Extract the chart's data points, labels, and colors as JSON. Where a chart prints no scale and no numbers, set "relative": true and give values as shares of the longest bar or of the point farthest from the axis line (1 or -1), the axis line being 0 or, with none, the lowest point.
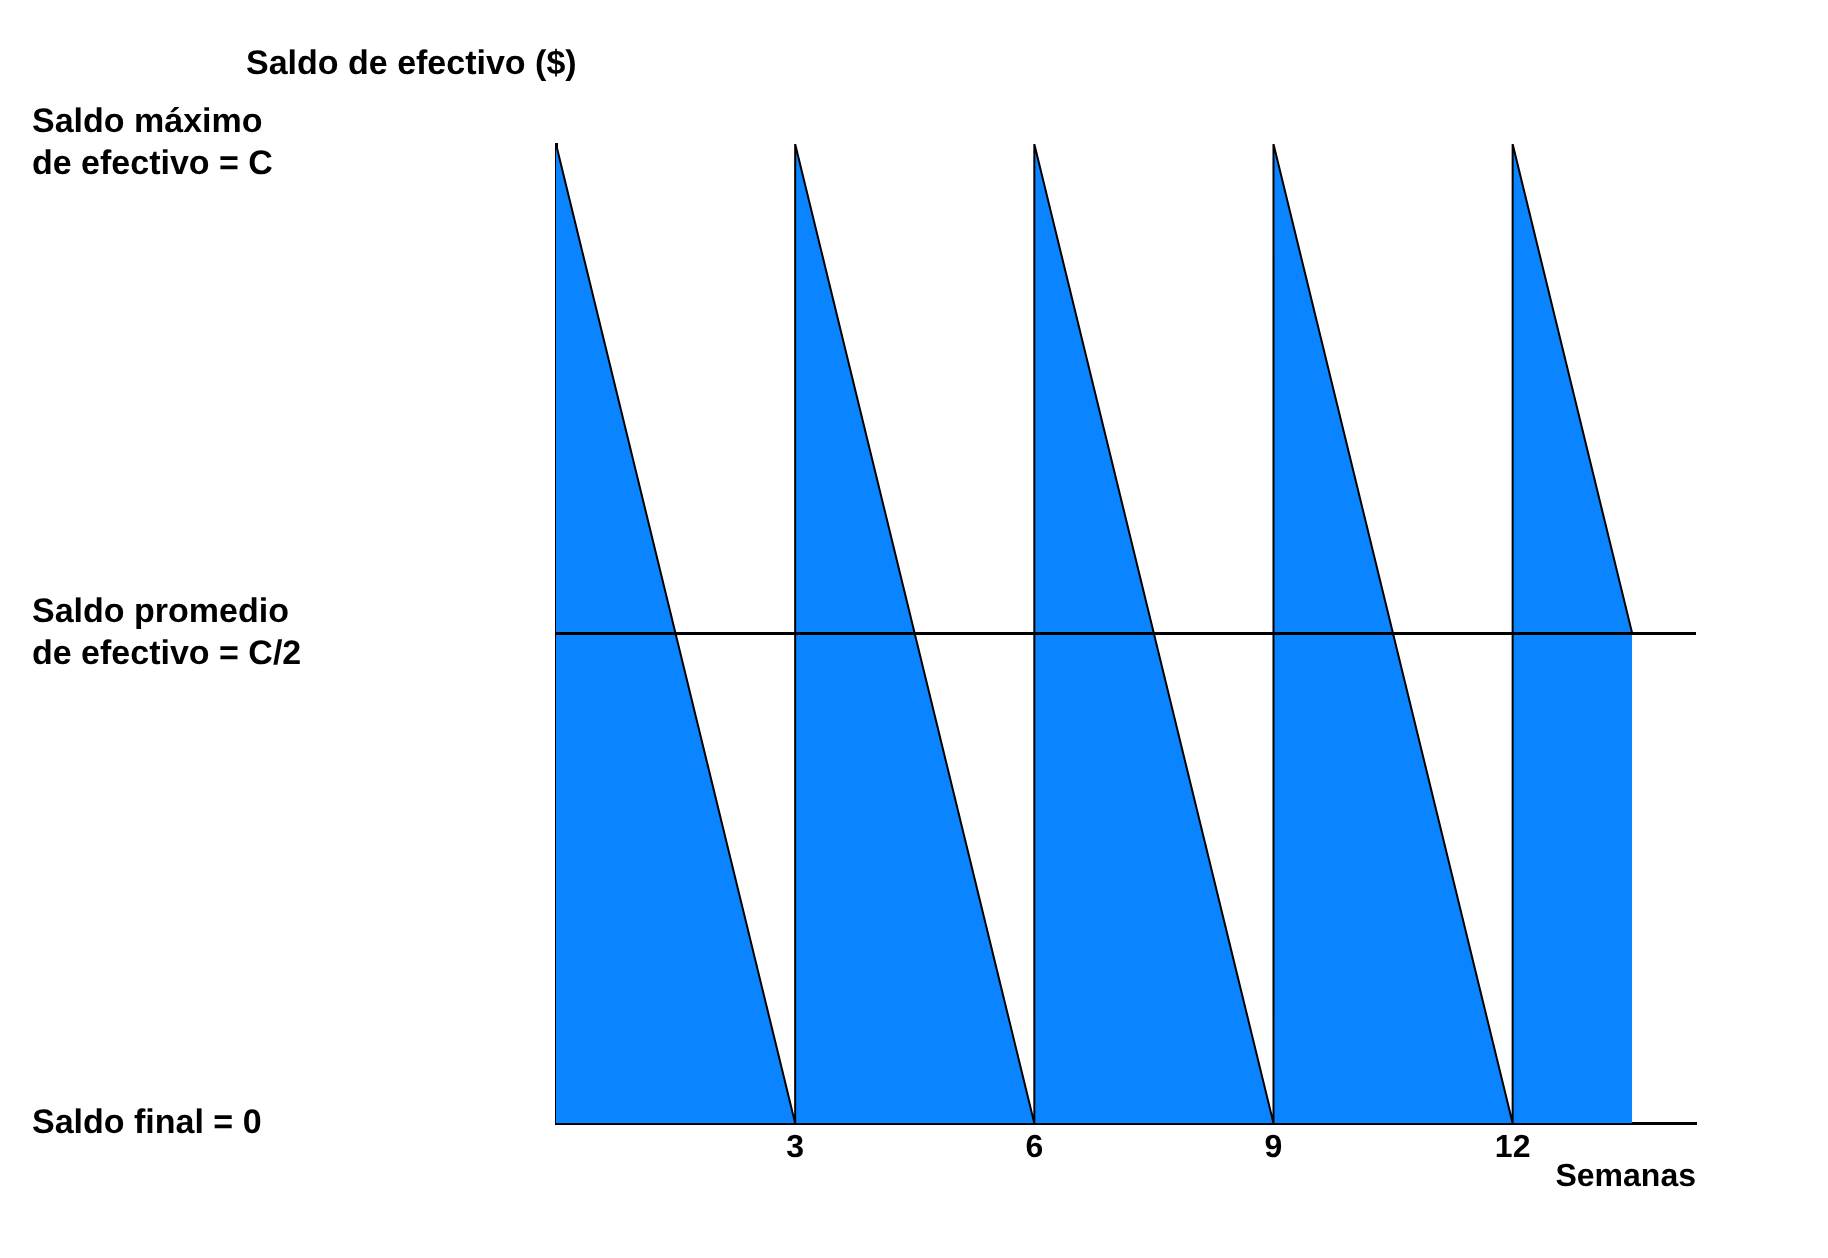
{
  "chart_data": {
    "type": "area",
    "title": "Saldo de efectivo ($)",
    "xlabel": "Semanas",
    "x": [
      0,
      3,
      3,
      6,
      6,
      9,
      9,
      12,
      12,
      13.5
    ],
    "series": [
      {
        "color": "#0a84ff",
        "values": [
          1,
          0,
          1,
          0,
          1,
          0,
          1,
          0,
          1,
          0.5
        ]
      }
    ],
    "xlim": [
      0,
      14.3
    ],
    "xticks": [
      3,
      6,
      9,
      12
    ],
    "relative": true,
    "annotations": [
      "Saldo máximo\nde efectivo = C",
      "Saldo promedio\nde efectivo = C/2",
      "Saldo final = 0"
    ],
    "ref_lines": [
      {
        "axis": "y",
        "value": 0.5,
        "color": "#000000"
      }
    ],
    "grid": false,
    "legend": false
  }
}
